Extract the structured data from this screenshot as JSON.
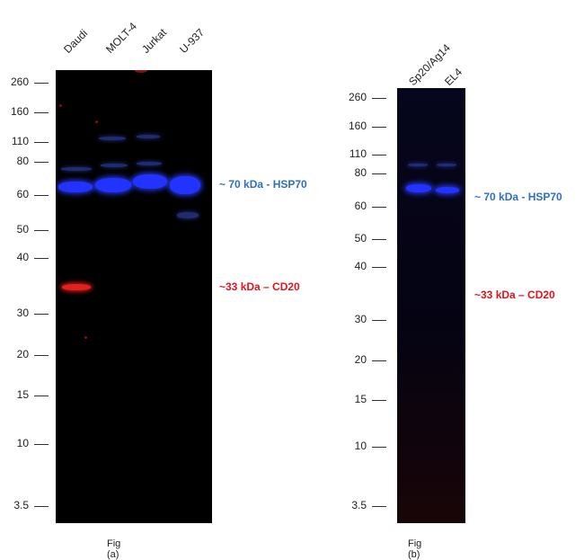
{
  "panel_a": {
    "lanes": [
      "Daudi",
      "MOLT-4",
      "Jurkat",
      "U-937"
    ],
    "markers": [
      "260",
      "160",
      "110",
      "80",
      "60",
      "50",
      "40",
      "30",
      "20",
      "15",
      "10",
      "3.5"
    ],
    "band_labels": {
      "hsp70": "~ 70 kDa - HSP70",
      "cd20": "~33 kDa – CD20"
    },
    "caption": "Fig (a)"
  },
  "panel_b": {
    "lanes": [
      "Sp20/Ag14",
      "EL4"
    ],
    "markers": [
      "260",
      "160",
      "110",
      "80",
      "60",
      "50",
      "40",
      "30",
      "20",
      "15",
      "10",
      "3.5"
    ],
    "band_labels": {
      "hsp70": "~ 70 kDa - HSP70",
      "cd20": "~33 kDa – CD20"
    },
    "caption": "Fig (b)"
  },
  "colors": {
    "hsp70_label": "#2e6fbf",
    "cd20_label": "#e0141e",
    "blot_background": "#000000"
  }
}
